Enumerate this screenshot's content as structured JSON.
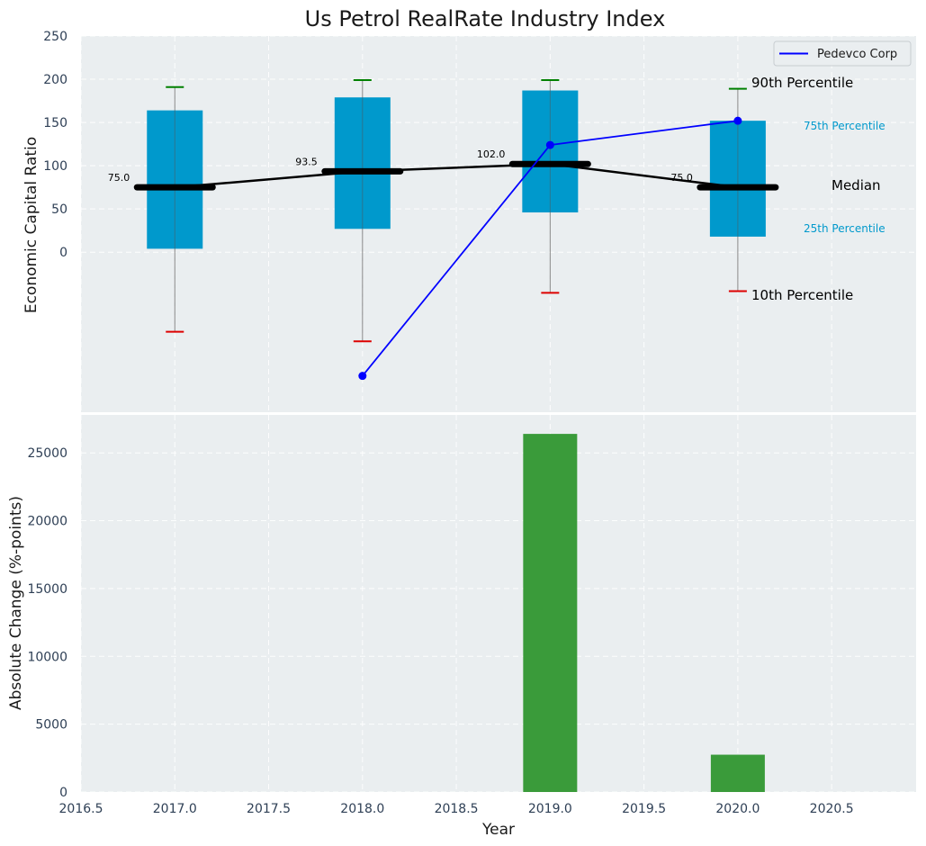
{
  "chart_data": [
    {
      "type": "box",
      "title": "Us Petrol RealRate Industry Index",
      "ylabel": "Economic Capital Ratio",
      "yticks": [
        "0",
        "50",
        "100",
        "150",
        "200",
        "250"
      ],
      "ylim": [
        -185,
        250
      ],
      "xlim": [
        2016.5,
        2020.95
      ],
      "categories": [
        2017,
        2018,
        2019,
        2020
      ],
      "percentiles": {
        "p10": [
          -92,
          -103,
          -47,
          -45
        ],
        "p25": [
          4,
          27,
          46,
          18
        ],
        "median": [
          75,
          93.5,
          102,
          75
        ],
        "p75": [
          164,
          179,
          187,
          152
        ],
        "p90": [
          191,
          199,
          199,
          189
        ]
      },
      "median_labels": [
        "75.0",
        "93.5",
        "102.0",
        "75.0"
      ],
      "series": [
        {
          "name": "Pedevco Corp",
          "x": [
            2018,
            2019,
            2020
          ],
          "values": [
            -143,
            124,
            152
          ],
          "color": "#0000ff"
        }
      ],
      "legend": {
        "position": "top-right",
        "entries": [
          "Pedevco Corp"
        ]
      },
      "annotations": {
        "p90_label": "90th Percentile",
        "p75_label": "75th Percentile",
        "median_label": "Median",
        "p25_label": "25th Percentile",
        "p10_label": "10th Percentile"
      },
      "colors": {
        "box": "#0099cc",
        "median": "#000000",
        "p90_cap": "#008000",
        "p10_cap": "#dd0000",
        "whisker": "#888888",
        "background": "#eaeef0"
      }
    },
    {
      "type": "bar",
      "ylabel": "Absolute Change (%-points)",
      "xlabel": "Year",
      "yticks": [
        "0",
        "5000",
        "10000",
        "15000",
        "20000",
        "25000"
      ],
      "ylim": [
        0,
        27800
      ],
      "x": [
        2019,
        2020
      ],
      "values": [
        26400,
        2750
      ],
      "xticks": [
        "2016.5",
        "2017.0",
        "2017.5",
        "2018.0",
        "2018.5",
        "2019.0",
        "2019.5",
        "2020.0",
        "2020.5"
      ],
      "colors": {
        "bar": "#3a9b3a",
        "background": "#eaeef0"
      }
    }
  ]
}
